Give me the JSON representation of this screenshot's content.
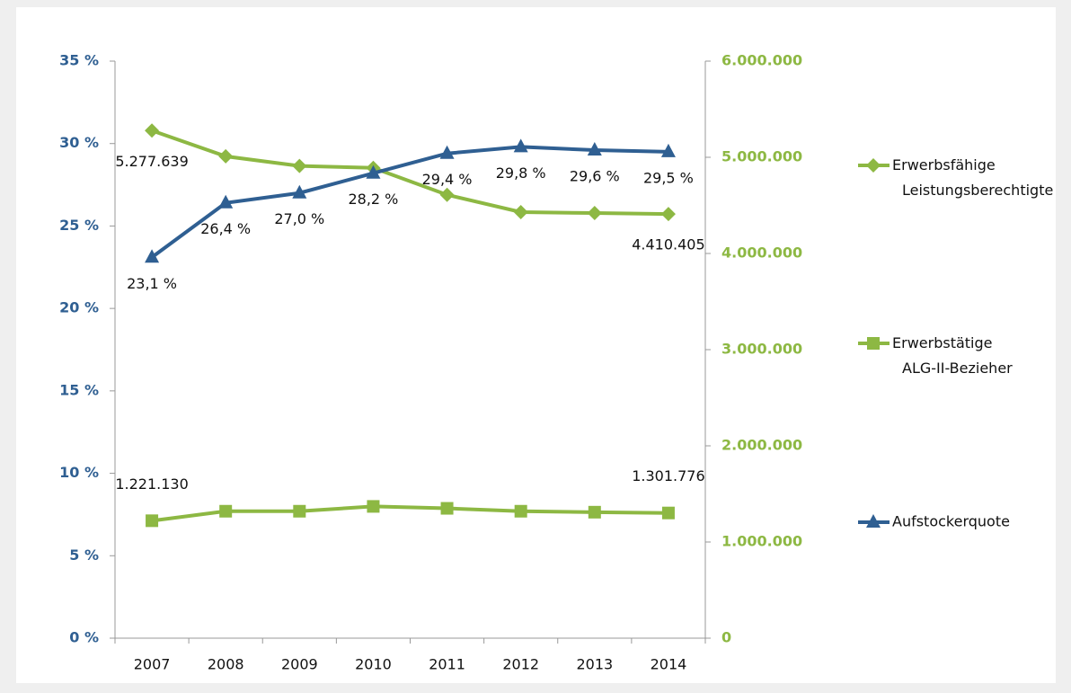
{
  "chart_data": {
    "type": "line",
    "categories": [
      "2007",
      "2008",
      "2009",
      "2010",
      "2011",
      "2012",
      "2013",
      "2014"
    ],
    "ylim": [
      0,
      35
    ],
    "yticks": [
      {
        "value": 0,
        "label": "0 %"
      },
      {
        "value": 5,
        "label": "5 %"
      },
      {
        "value": 10,
        "label": "10 %"
      },
      {
        "value": 15,
        "label": "15 %"
      },
      {
        "value": 20,
        "label": "20 %"
      },
      {
        "value": 25,
        "label": "25 %"
      },
      {
        "value": 30,
        "label": "30 %"
      },
      {
        "value": 35,
        "label": "35 %"
      }
    ],
    "y2lim": [
      0,
      6000000
    ],
    "y2ticks": [
      0,
      {
        "value": 1000000,
        "label": "1.000.000"
      },
      {
        "value": 2000000,
        "label": "2.000.000"
      },
      {
        "value": 3000000,
        "label": "3.000.000"
      },
      {
        "value": 4000000,
        "label": "4.000.000"
      },
      {
        "value": 5000000,
        "label": "5.000.000"
      },
      {
        "value": 6000000,
        "label": "6.000.000"
      }
    ],
    "legend": "right",
    "series": [
      {
        "name": "Erwerbsfähige Leistungsberechtigte",
        "color": "#8db843",
        "marker": "diamond",
        "axis": "y2",
        "values": [
          5277639,
          5010000,
          4910000,
          4890000,
          4610000,
          4430000,
          4420000,
          4410405
        ],
        "value_labels": [
          "5.277.639",
          null,
          null,
          null,
          null,
          null,
          null,
          "4.410.405"
        ]
      },
      {
        "name": "Erwerbstätige ALG-II-Bezieher",
        "color": "#8db843",
        "marker": "square",
        "axis": "y2",
        "values": [
          1221130,
          1320000,
          1320000,
          1370000,
          1350000,
          1320000,
          1310000,
          1301776
        ],
        "value_labels": [
          "1.221.130",
          null,
          null,
          null,
          null,
          null,
          null,
          "1.301.776"
        ]
      },
      {
        "name": "Aufstockerquote",
        "color": "#2f5f92",
        "marker": "triangle",
        "values": [
          23.1,
          26.4,
          27.0,
          28.2,
          29.4,
          29.8,
          29.6,
          29.5
        ],
        "value_labels": [
          "23,1 %",
          "26,4 %",
          "27,0 %",
          "28,2 %",
          "29,4 %",
          "29,8 %",
          "29,6 %",
          "29,5 %"
        ]
      }
    ]
  }
}
